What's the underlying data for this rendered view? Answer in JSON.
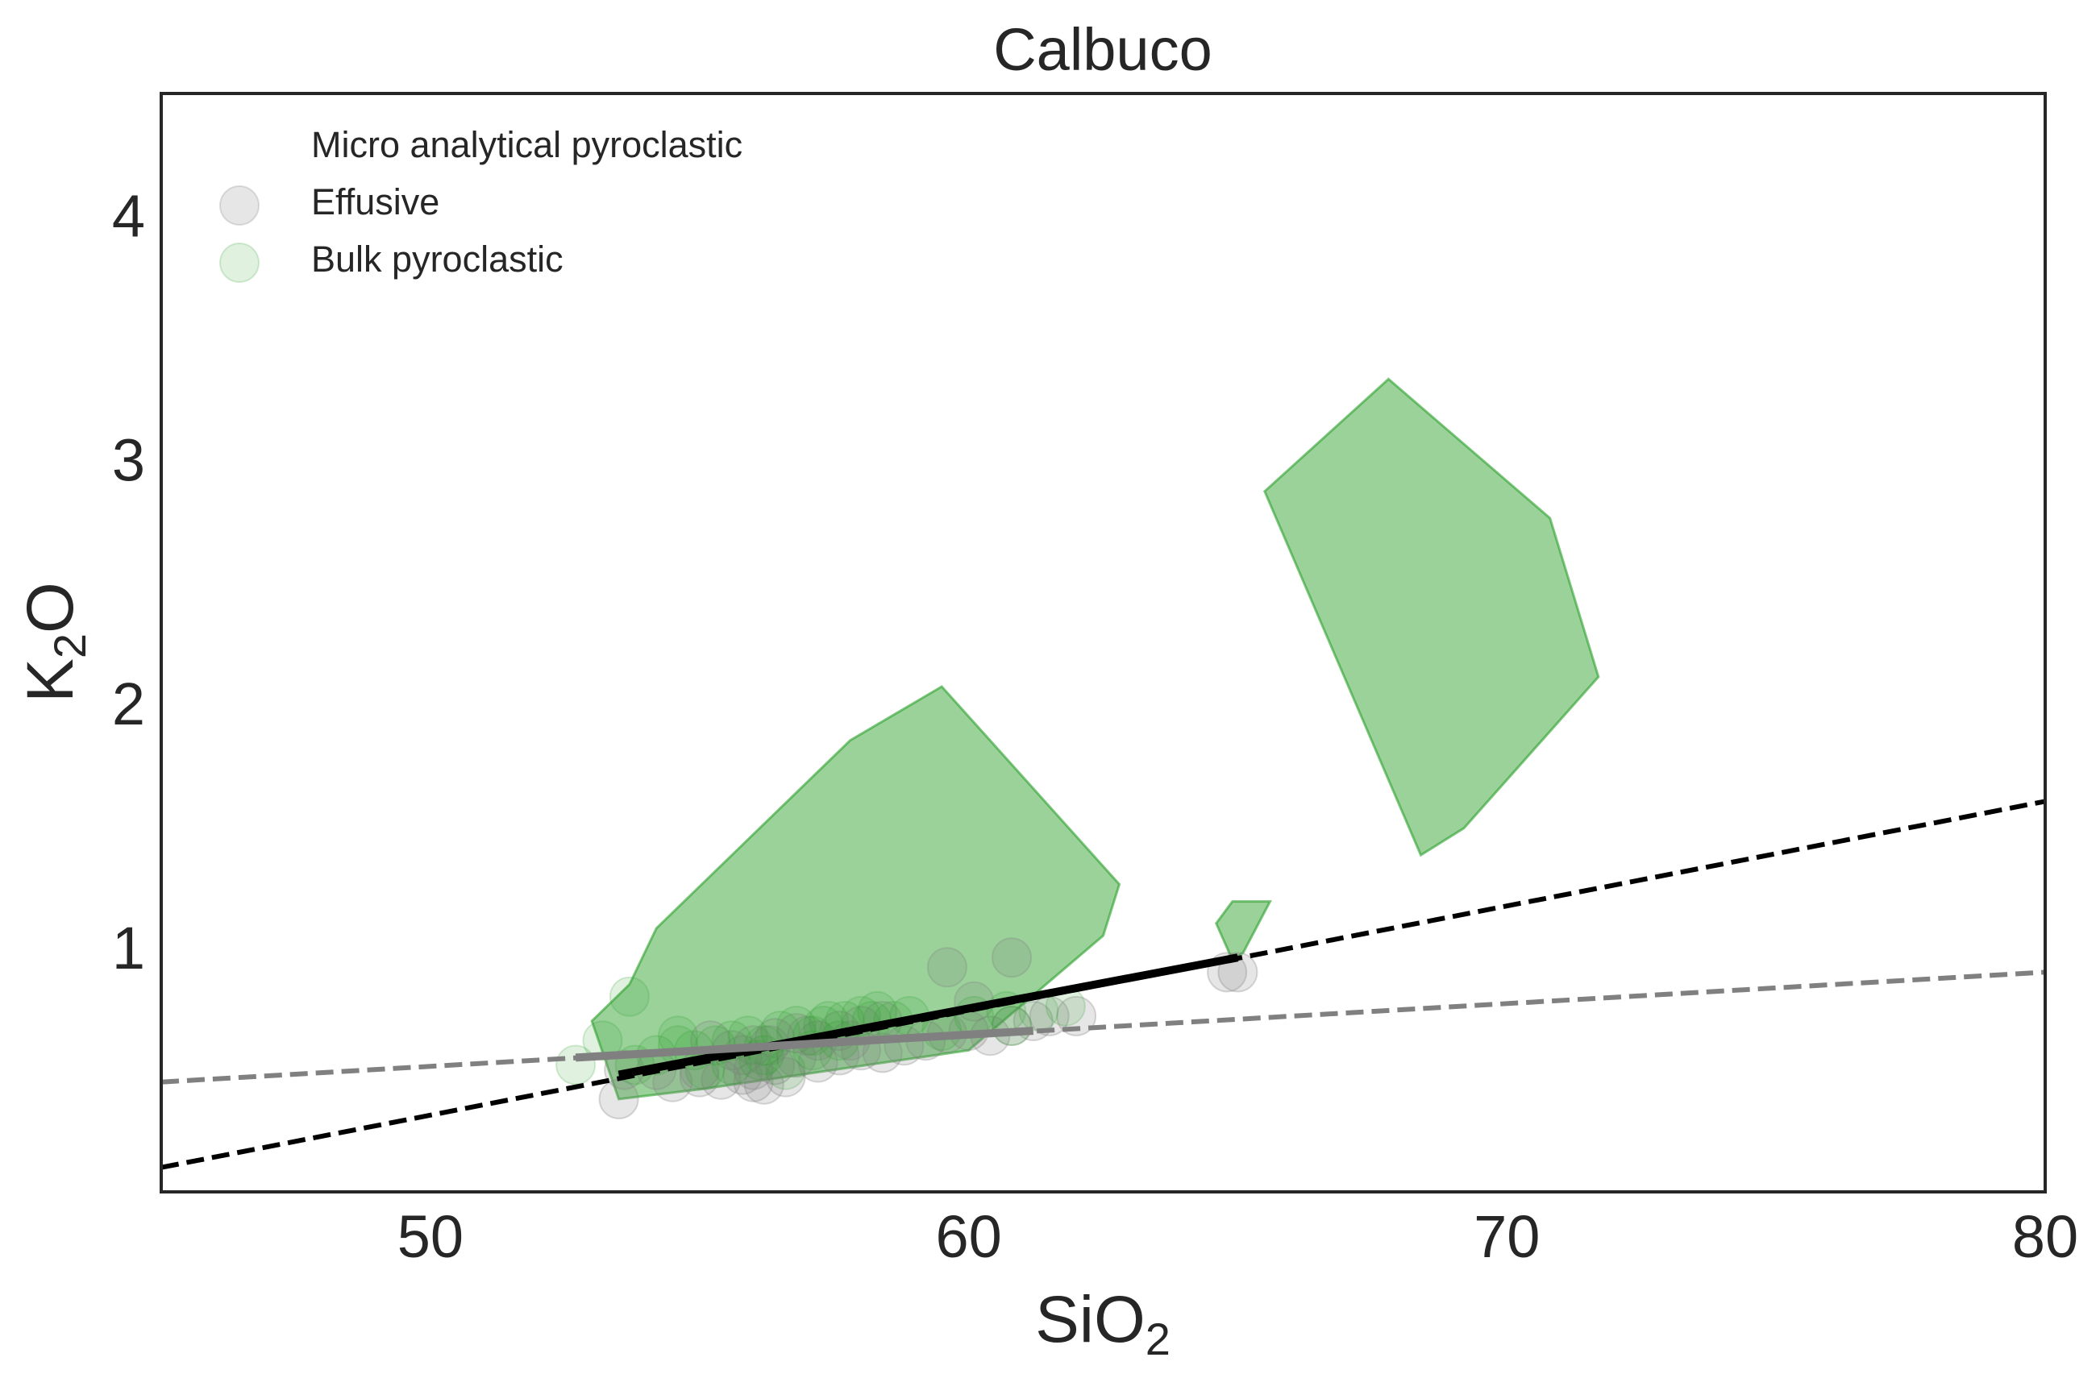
{
  "chart_data": {
    "type": "scatter",
    "title": "Calbuco",
    "xlabel": {
      "base": "SiO",
      "sub": "2"
    },
    "ylabel": {
      "base": "K",
      "sub": "2",
      "rest": "O"
    },
    "xlim": [
      45,
      80
    ],
    "ylim": [
      0,
      4.5
    ],
    "xticks": [
      50,
      60,
      70,
      80
    ],
    "yticks": [
      1,
      2,
      3,
      4
    ],
    "grid": false,
    "legend_position": "top-left",
    "legend": [
      {
        "label": "Micro analytical pyroclastic",
        "marker": "none"
      },
      {
        "label": "Effusive",
        "marker": "circle",
        "color": "#808080"
      },
      {
        "label": "Bulk pyroclastic",
        "marker": "circle",
        "color": "#2ca02c"
      }
    ],
    "colors": {
      "effusive": "#808080",
      "bulk": "#2ca02c",
      "fill": "#2ca02c",
      "trend_black": "#000000",
      "trend_gray": "#808080"
    },
    "regions": [
      {
        "name": "micro-analytical-region-1",
        "points": [
          [
            53.0,
            0.7
          ],
          [
            53.7,
            0.85
          ],
          [
            54.2,
            1.08
          ],
          [
            57.8,
            1.85
          ],
          [
            59.5,
            2.07
          ],
          [
            62.8,
            1.26
          ],
          [
            62.5,
            1.05
          ],
          [
            60.0,
            0.58
          ],
          [
            55.0,
            0.42
          ],
          [
            53.5,
            0.38
          ]
        ]
      },
      {
        "name": "micro-analytical-region-2",
        "points": [
          [
            64.6,
            1.1
          ],
          [
            64.9,
            1.19
          ],
          [
            65.6,
            1.19
          ],
          [
            65.1,
            0.98
          ],
          [
            64.9,
            0.95
          ]
        ]
      },
      {
        "name": "micro-analytical-region-3",
        "points": [
          [
            65.5,
            2.87
          ],
          [
            67.8,
            3.33
          ],
          [
            70.8,
            2.76
          ],
          [
            71.7,
            2.11
          ],
          [
            69.2,
            1.49
          ],
          [
            68.4,
            1.38
          ]
        ]
      }
    ],
    "effusive": {
      "x": [
        53.5,
        54.5,
        55.0,
        55.4,
        55.8,
        56.0,
        56.2,
        56.4,
        56.6,
        56.8,
        57.2,
        57.6,
        58.0,
        58.4,
        58.8,
        59.2,
        59.6,
        60.0,
        60.4,
        60.8,
        61.2,
        55.2,
        55.6,
        56.0,
        56.4,
        56.8,
        57.2,
        57.6,
        58.0,
        58.4,
        59.6,
        60.1,
        60.8,
        61.5,
        62.0,
        55.8,
        56.3,
        57.0,
        57.8,
        64.8,
        65.0,
        55.0,
        56.0,
        53.6,
        54.2
      ],
      "y": [
        0.38,
        0.45,
        0.47,
        0.46,
        0.48,
        0.5,
        0.44,
        0.52,
        0.47,
        0.55,
        0.53,
        0.56,
        0.58,
        0.57,
        0.6,
        0.62,
        0.65,
        0.66,
        0.64,
        0.68,
        0.7,
        0.62,
        0.58,
        0.6,
        0.63,
        0.65,
        0.62,
        0.66,
        0.68,
        0.7,
        0.92,
        0.78,
        0.96,
        0.72,
        0.72,
        0.56,
        0.6,
        0.64,
        0.62,
        0.9,
        0.9,
        0.5,
        0.45,
        0.5,
        0.5
      ]
    },
    "bulk": {
      "x": [
        52.7,
        53.2,
        53.8,
        54.2,
        54.6,
        54.9,
        55.3,
        55.6,
        55.9,
        56.2,
        56.5,
        56.8,
        57.1,
        57.4,
        57.7,
        58.0,
        58.3,
        58.6,
        58.9,
        59.5,
        60.1,
        60.7,
        61.3,
        61.8,
        55.1,
        55.6,
        56.1,
        56.6,
        57.1,
        57.6,
        53.7,
        54.6,
        56.2,
        57.3,
        58.2,
        60.8
      ],
      "y": [
        0.52,
        0.62,
        0.52,
        0.56,
        0.6,
        0.58,
        0.6,
        0.62,
        0.64,
        0.6,
        0.66,
        0.68,
        0.64,
        0.7,
        0.7,
        0.72,
        0.74,
        0.7,
        0.72,
        0.66,
        0.72,
        0.74,
        0.74,
        0.76,
        0.5,
        0.52,
        0.54,
        0.5,
        0.58,
        0.62,
        0.8,
        0.64,
        0.56,
        0.68,
        0.7,
        0.68
      ]
    },
    "trend_lines": [
      {
        "name": "black-dashed-trend",
        "style": "dashed",
        "color": "#000000",
        "points": [
          [
            45,
            0.1
          ],
          [
            80,
            1.6
          ]
        ]
      },
      {
        "name": "gray-dashed-trend",
        "style": "dashed",
        "color": "#808080",
        "points": [
          [
            45,
            0.45
          ],
          [
            80,
            0.9
          ]
        ]
      },
      {
        "name": "black-solid-trend",
        "style": "solid",
        "color": "#000000",
        "points": [
          [
            53.5,
            0.48
          ],
          [
            65.0,
            0.96
          ]
        ]
      },
      {
        "name": "gray-solid-trend",
        "style": "solid",
        "color": "#808080",
        "points": [
          [
            52.7,
            0.55
          ],
          [
            61.2,
            0.66
          ]
        ]
      }
    ]
  }
}
